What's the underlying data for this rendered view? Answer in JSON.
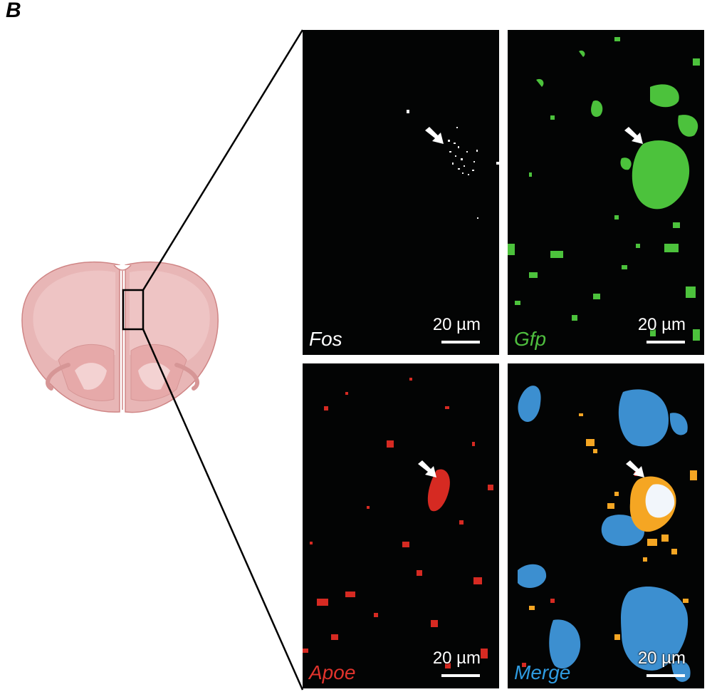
{
  "figure": {
    "panel_letter": "B"
  },
  "panels": [
    {
      "id": "fos",
      "label": "Fos",
      "label_color": "#ffffff",
      "scale_text": "20 µm"
    },
    {
      "id": "gfp",
      "label": "Gfp",
      "label_color": "#4fbf3f",
      "scale_text": "20 µm"
    },
    {
      "id": "apoe",
      "label": "Apoe",
      "label_color": "#e0332c",
      "scale_text": "20 µm"
    },
    {
      "id": "merge",
      "label": "Merge",
      "label_color": "#2f9be0",
      "scale_text": "20 µm"
    }
  ],
  "colors": {
    "brain_fill": "#e8b6b6",
    "brain_outline": "#cf8585",
    "fos_signal": "#f2f2f2",
    "gfp_signal": "#4cc23c",
    "apoe_signal": "#d62a22",
    "merge_dapi": "#3c8fd0",
    "merge_overlap": "#f5a623",
    "arrow": "#ffffff"
  }
}
